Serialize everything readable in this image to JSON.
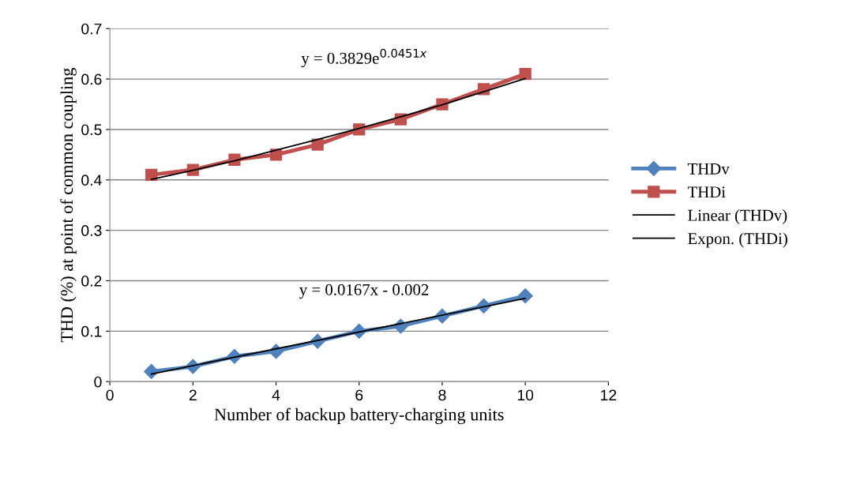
{
  "chart_data": {
    "type": "line",
    "xlabel": "Number of backup battery-charging units",
    "ylabel": "THD (%) at point of common coupling",
    "x": [
      1,
      2,
      3,
      4,
      5,
      6,
      7,
      8,
      9,
      10
    ],
    "series": [
      {
        "name": "THDv",
        "color": "#4f81bd",
        "marker": "diamond",
        "values": [
          0.02,
          0.03,
          0.05,
          0.06,
          0.08,
          0.1,
          0.11,
          0.13,
          0.15,
          0.17
        ]
      },
      {
        "name": "THDi",
        "color": "#c0504d",
        "marker": "square",
        "values": [
          0.41,
          0.42,
          0.44,
          0.45,
          0.47,
          0.5,
          0.52,
          0.55,
          0.58,
          0.61
        ]
      },
      {
        "name": "Linear (THDv)",
        "color": "#000000",
        "marker": "none",
        "x": [
          1,
          10
        ],
        "values": [
          0.015,
          0.165
        ]
      },
      {
        "name": "Expon. (THDi)",
        "color": "#000000",
        "marker": "none",
        "x": [
          1,
          2,
          3,
          4,
          5,
          6,
          7,
          8,
          9,
          10
        ],
        "values": [
          0.401,
          0.419,
          0.438,
          0.459,
          0.48,
          0.502,
          0.525,
          0.549,
          0.575,
          0.601
        ]
      }
    ],
    "annotations": [
      "y = 0.3829e$^{0.0451x}$",
      "y = 0.0167x - 0.002"
    ],
    "xlim": [
      0,
      12
    ],
    "xticks": [
      0,
      2,
      4,
      6,
      8,
      10,
      12
    ],
    "ylim": [
      0,
      0.7
    ],
    "yticks": [
      0,
      0.1,
      0.2,
      0.3,
      0.4,
      0.5,
      0.6,
      0.7
    ],
    "grid": "y",
    "legend": "right",
    "line_style": "solid"
  }
}
